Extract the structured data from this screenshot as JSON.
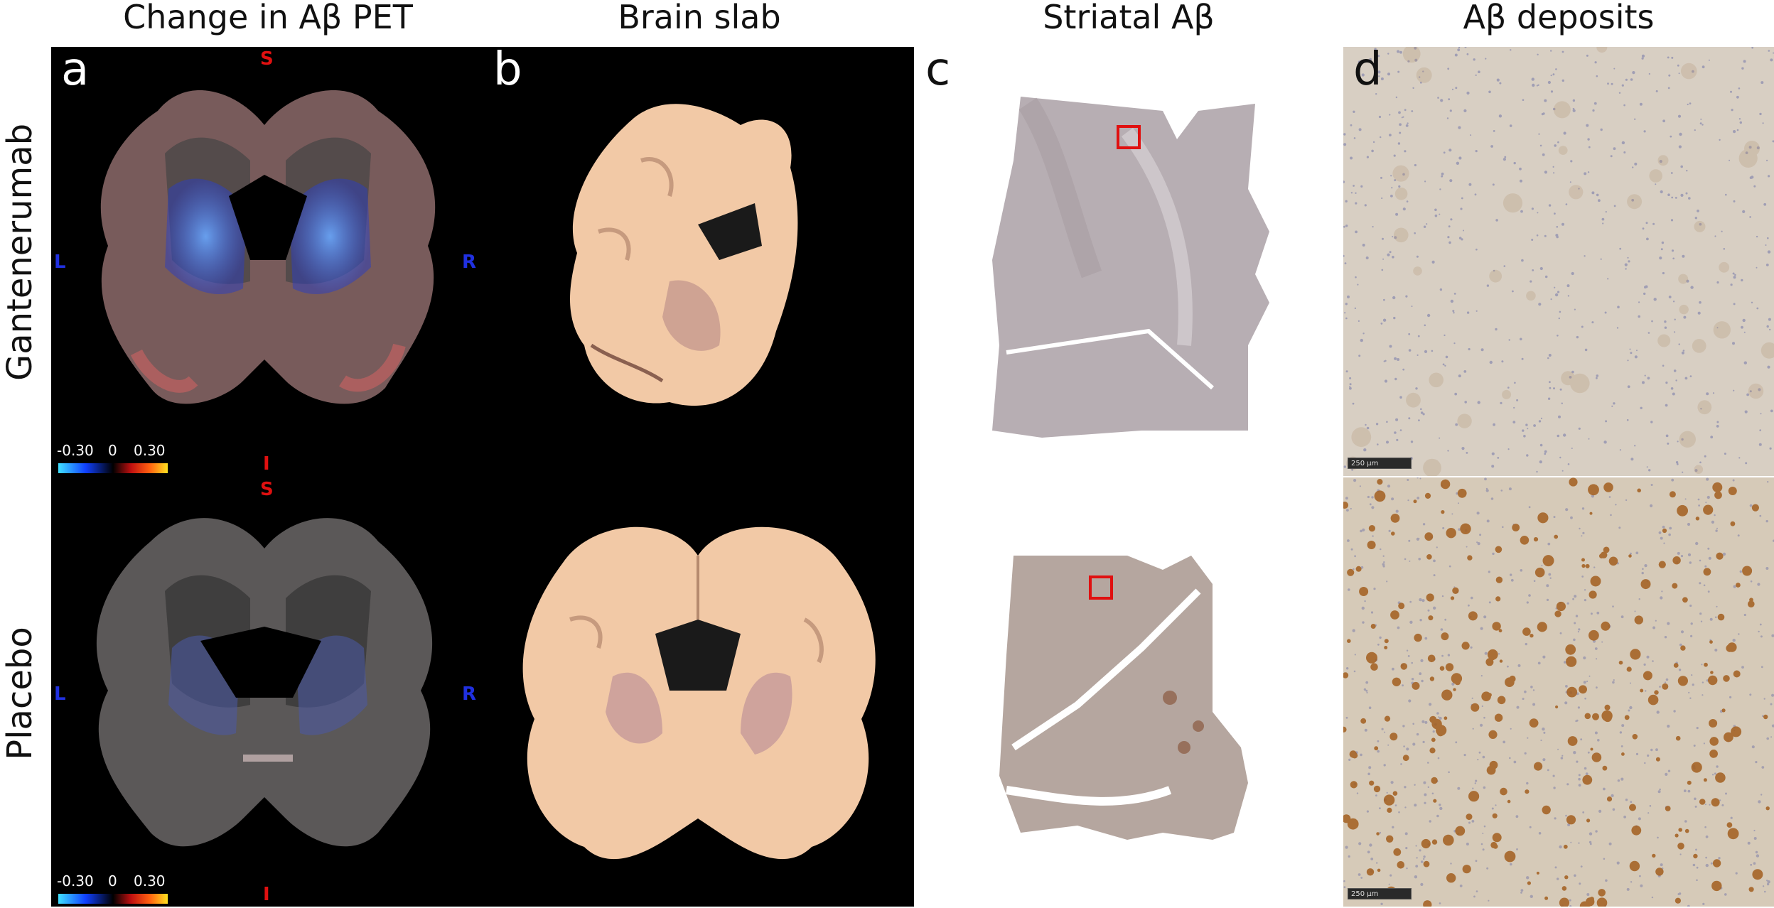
{
  "column_titles": {
    "a": "Change in Aβ PET",
    "b": "Brain slab",
    "c": "Striatal Aβ",
    "d": "Aβ deposits"
  },
  "row_titles": {
    "top": "Gantenerumab",
    "bottom": "Placebo"
  },
  "panel_letters": {
    "a": "a",
    "b": "b",
    "c": "c",
    "d": "d"
  },
  "orientation": {
    "superior": "S",
    "inferior": "I",
    "left": "L",
    "right": "R"
  },
  "colorbar": {
    "min": "-0.30",
    "mid": "0",
    "max": "0.30"
  },
  "scale_bar": "250 µm",
  "colors": {
    "letter_white": "#ffffff",
    "letter_black": "#111111",
    "orient_superior_inferior": "#e01010",
    "orient_left_right": "#2030e0",
    "roi_box": "#e01010"
  }
}
